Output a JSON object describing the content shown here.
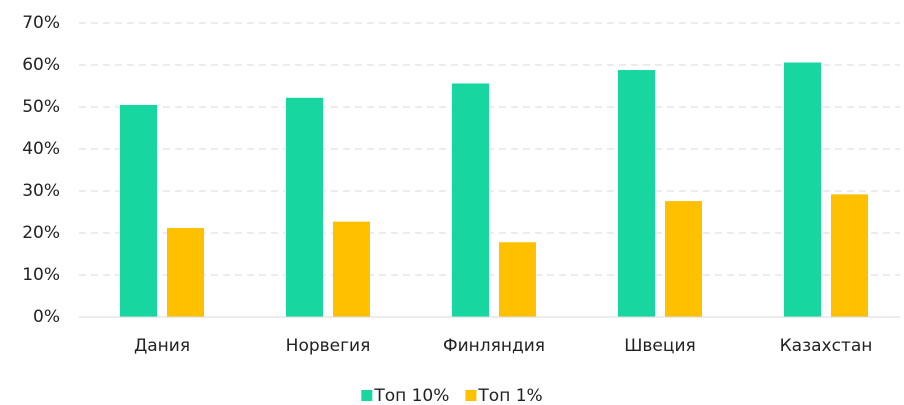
{
  "chart_data": {
    "type": "bar",
    "categories": [
      "Дания",
      "Норвегия",
      "Финляндия",
      "Швеция",
      "Казахстан"
    ],
    "series": [
      {
        "name": "Топ 10%",
        "color": "#17d69f",
        "values": [
          50.5,
          52.2,
          55.6,
          58.8,
          60.6
        ]
      },
      {
        "name": "Топ 1%",
        "color": "#ffc000",
        "values": [
          21.2,
          22.7,
          17.8,
          27.6,
          29.2
        ]
      }
    ],
    "ylim": [
      0,
      70
    ],
    "yticks": [
      {
        "value": 0,
        "label": "0%"
      },
      {
        "value": 10,
        "label": "10%"
      },
      {
        "value": 20,
        "label": "20%"
      },
      {
        "value": 30,
        "label": "30%"
      },
      {
        "value": 40,
        "label": "40%"
      },
      {
        "value": 50,
        "label": "50%"
      },
      {
        "value": 60,
        "label": "60%"
      },
      {
        "value": 70,
        "label": "70%"
      }
    ],
    "grid": true,
    "legend": "bottom"
  }
}
